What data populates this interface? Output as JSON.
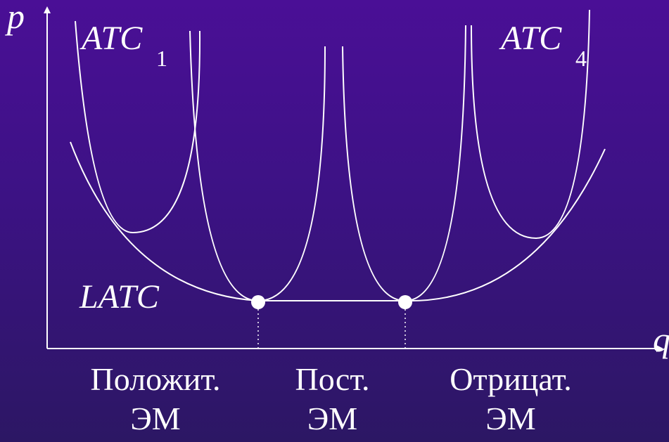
{
  "axes": {
    "y_label": "p",
    "x_label": "q"
  },
  "curves": {
    "atc_first": {
      "name": "ATC",
      "subscript": "1"
    },
    "atc_last": {
      "name": "ATC",
      "subscript": "4"
    },
    "latc": {
      "name": "LATC"
    }
  },
  "zones": [
    {
      "title": "Положит.",
      "abbr": "ЭМ"
    },
    {
      "title": "Пост.",
      "abbr": "ЭМ"
    },
    {
      "title": "Отрицат.",
      "abbr": "ЭМ"
    }
  ],
  "colors": {
    "background_top": "#4a0f96",
    "background_bottom": "#2c1764",
    "foreground": "#ffffff"
  }
}
